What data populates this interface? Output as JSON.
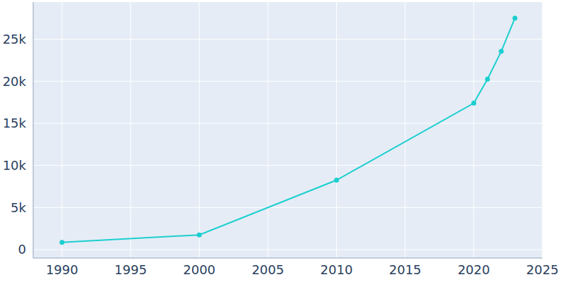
{
  "chart_data": {
    "type": "line",
    "x": [
      1990,
      2000,
      2010,
      2020,
      2021,
      2022,
      2023
    ],
    "values": [
      870,
      1750,
      8250,
      17400,
      20250,
      23550,
      27500
    ],
    "color": "#1ccfcf",
    "marker": "circle",
    "xlim": [
      1987.9,
      2025
    ],
    "xticks": [
      1990,
      1995,
      2000,
      2005,
      2010,
      2015,
      2020,
      2025
    ],
    "ylim": [
      -1000,
      29400
    ],
    "yticks": [
      0,
      {
        "value": 5000,
        "label": "5k"
      },
      {
        "value": 10000,
        "label": "10k"
      },
      {
        "value": 15000,
        "label": "15k"
      },
      {
        "value": 20000,
        "label": "20k"
      },
      {
        "value": 25000,
        "label": "25k"
      }
    ],
    "grid": true
  }
}
